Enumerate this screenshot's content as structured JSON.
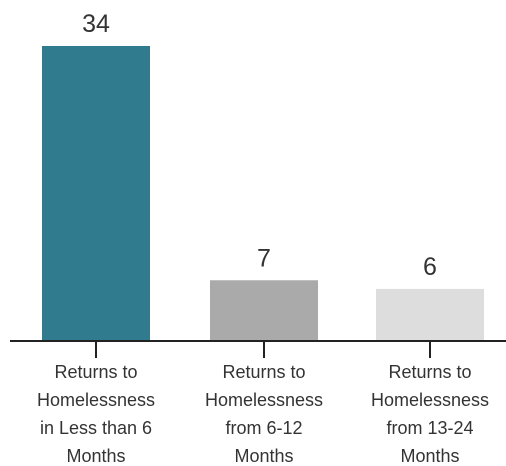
{
  "chart_data": {
    "type": "bar",
    "categories": [
      [
        "Returns to",
        "Homelessness",
        "in Less than 6",
        "Months"
      ],
      [
        "Returns to",
        "Homelessness",
        "from 6-12",
        "Months"
      ],
      [
        "Returns to",
        "Homelessness",
        "from 13-24",
        "Months"
      ]
    ],
    "values": [
      34,
      7,
      6
    ],
    "bar_colors": [
      "#317b8e",
      "#aaaaaa",
      "#dddddd"
    ],
    "axis_color": "#222222",
    "text_color": "#333333",
    "ylim": [
      0,
      34
    ],
    "grid": false,
    "legend": "none",
    "title": "",
    "xlabel": "",
    "ylabel": ""
  }
}
